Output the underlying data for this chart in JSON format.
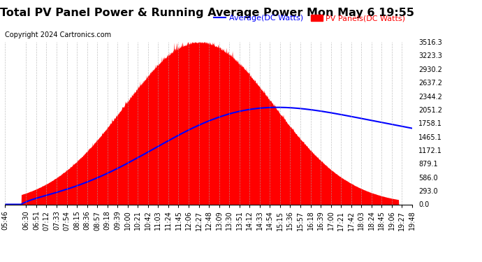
{
  "title": "Total PV Panel Power & Running Average Power Mon May 6 19:55",
  "copyright": "Copyright 2024 Cartronics.com",
  "legend_average": "Average(DC Watts)",
  "legend_pv": "PV Panels(DC Watts)",
  "legend_average_color": "blue",
  "legend_pv_color": "red",
  "y_ticks": [
    0.0,
    293.0,
    586.0,
    879.1,
    1172.1,
    1465.1,
    1758.1,
    2051.2,
    2344.2,
    2637.2,
    2930.2,
    3223.3,
    3516.3
  ],
  "x_labels": [
    "05:46",
    "06:30",
    "06:51",
    "07:12",
    "07:33",
    "07:54",
    "08:15",
    "08:36",
    "08:57",
    "09:18",
    "09:39",
    "10:00",
    "10:21",
    "10:42",
    "11:03",
    "11:24",
    "11:45",
    "12:06",
    "12:27",
    "12:48",
    "13:09",
    "13:30",
    "13:51",
    "14:12",
    "14:33",
    "14:54",
    "15:15",
    "15:36",
    "15:57",
    "16:18",
    "16:39",
    "17:00",
    "17:21",
    "17:42",
    "18:03",
    "18:24",
    "18:45",
    "19:06",
    "19:27",
    "19:48"
  ],
  "background_color": "#ffffff",
  "fill_color": "#ff0000",
  "line_color": "#0000ff",
  "grid_color": "#aaaaaa",
  "title_fontsize": 11.5,
  "axis_fontsize": 7,
  "copyright_fontsize": 7
}
